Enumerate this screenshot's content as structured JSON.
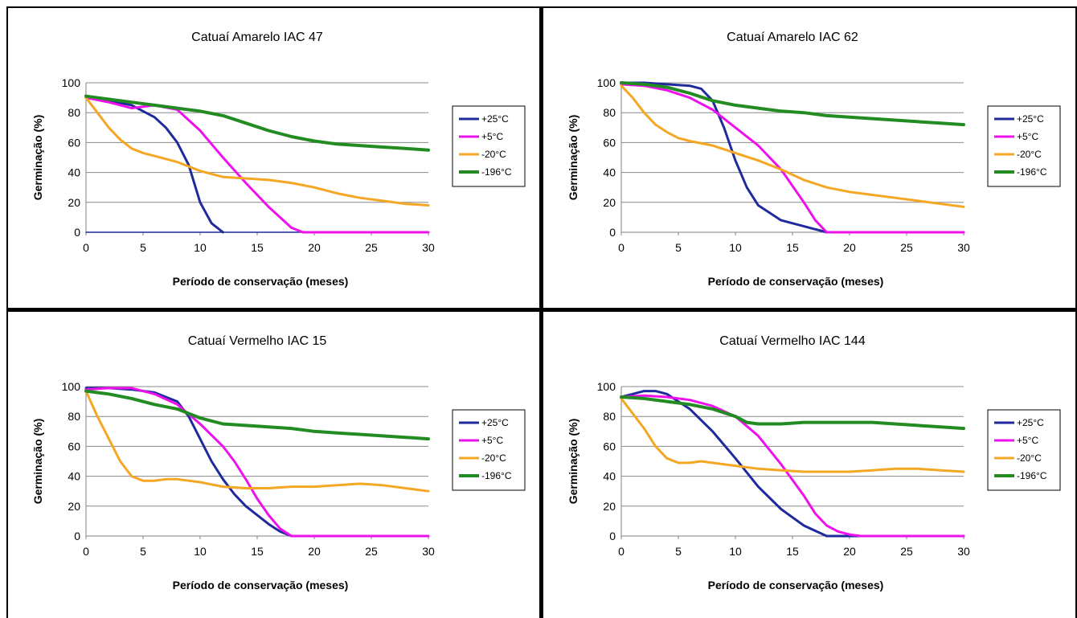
{
  "chart_data": [
    {
      "type": "line",
      "title": "Catuaí Amarelo IAC 47",
      "xlabel": "Período de conservação (meses)",
      "ylabel": "Germinação (%)",
      "xlim": [
        0,
        30
      ],
      "ylim": [
        0,
        100
      ],
      "xticks": [
        "0",
        "5",
        "10",
        "15",
        "20",
        "25",
        "30"
      ],
      "yticks": [
        "0",
        "20",
        "40",
        "60",
        "80",
        "100"
      ],
      "grid": "horizontal",
      "legend": "right",
      "series": [
        {
          "name": "+25°C",
          "color": "#1f2a9c",
          "width": 1.5,
          "x": [
            0,
            30
          ],
          "y": [
            0,
            0
          ]
        },
        {
          "name": "+25°C",
          "color": "#1f2a9c",
          "width": 3,
          "x": [
            0,
            2,
            4,
            6,
            7,
            8,
            9,
            10,
            11,
            12
          ],
          "y": [
            90,
            88,
            85,
            77,
            70,
            60,
            45,
            20,
            6,
            0
          ]
        },
        {
          "name": "+5°C",
          "color": "#ee11ee",
          "width": 3,
          "x": [
            0,
            2,
            4,
            6,
            8,
            10,
            12,
            14,
            16,
            18,
            19,
            30
          ],
          "y": [
            90,
            87,
            83,
            85,
            82,
            68,
            50,
            33,
            17,
            3,
            0,
            0
          ]
        },
        {
          "name": "-20°C",
          "color": "#f5a623",
          "width": 3,
          "x": [
            0,
            1,
            2,
            3,
            4,
            5,
            6,
            8,
            10,
            12,
            14,
            16,
            18,
            20,
            22,
            24,
            26,
            28,
            30
          ],
          "y": [
            90,
            80,
            70,
            62,
            56,
            53,
            51,
            47,
            41,
            37,
            36,
            35,
            33,
            30,
            26,
            23,
            21,
            19,
            18
          ]
        },
        {
          "name": "-196°C",
          "color": "#228b22",
          "width": 4,
          "x": [
            0,
            2,
            4,
            6,
            8,
            10,
            12,
            14,
            16,
            18,
            20,
            22,
            24,
            26,
            28,
            30
          ],
          "y": [
            91,
            89,
            87,
            85,
            83,
            81,
            78,
            73,
            68,
            64,
            61,
            59,
            58,
            57,
            56,
            55
          ]
        }
      ]
    },
    {
      "type": "line",
      "title": "Catuaí Amarelo IAC 62",
      "xlabel": "Período de conservação (meses)",
      "ylabel": "Germinação (%)",
      "xlim": [
        0,
        30
      ],
      "ylim": [
        0,
        100
      ],
      "xticks": [
        "0",
        "5",
        "10",
        "15",
        "20",
        "25",
        "30"
      ],
      "yticks": [
        "0",
        "20",
        "40",
        "60",
        "80",
        "100"
      ],
      "grid": "horizontal",
      "legend": "right",
      "series": [
        {
          "name": "+25°C",
          "color": "#1f2a9c",
          "width": 3,
          "x": [
            0,
            2,
            4,
            6,
            7,
            8,
            9,
            10,
            11,
            12,
            14,
            16,
            17,
            18,
            30
          ],
          "y": [
            100,
            100,
            99,
            98,
            96,
            88,
            70,
            48,
            30,
            18,
            8,
            4,
            2,
            0,
            0
          ]
        },
        {
          "name": "+5°C",
          "color": "#ee11ee",
          "width": 3,
          "x": [
            0,
            2,
            4,
            6,
            8,
            10,
            12,
            14,
            16,
            17,
            18,
            22,
            30
          ],
          "y": [
            99,
            98,
            95,
            90,
            82,
            70,
            58,
            42,
            20,
            8,
            0,
            0,
            0
          ]
        },
        {
          "name": "-20°C",
          "color": "#f5a623",
          "width": 3,
          "x": [
            0,
            1,
            2,
            3,
            4,
            5,
            6,
            8,
            10,
            12,
            14,
            16,
            18,
            20,
            22,
            24,
            26,
            28,
            30
          ],
          "y": [
            98,
            90,
            80,
            72,
            67,
            63,
            61,
            58,
            53,
            48,
            42,
            35,
            30,
            27,
            25,
            23,
            21,
            19,
            17
          ]
        },
        {
          "name": "-196°C",
          "color": "#228b22",
          "width": 4,
          "x": [
            0,
            2,
            4,
            6,
            8,
            10,
            12,
            14,
            16,
            18,
            20,
            22,
            24,
            26,
            28,
            30
          ],
          "y": [
            100,
            99,
            97,
            93,
            88,
            85,
            83,
            81,
            80,
            78,
            77,
            76,
            75,
            74,
            73,
            72
          ]
        }
      ]
    },
    {
      "type": "line",
      "title": "Catuaí Vermelho IAC 15",
      "xlabel": "Período de conservação (meses)",
      "ylabel": "Germinação (%)",
      "xlim": [
        0,
        30
      ],
      "ylim": [
        0,
        100
      ],
      "xticks": [
        "0",
        "5",
        "10",
        "15",
        "20",
        "25",
        "30"
      ],
      "yticks": [
        "0",
        "20",
        "40",
        "60",
        "80",
        "100"
      ],
      "grid": "horizontal",
      "legend": "right",
      "series": [
        {
          "name": "+25°C",
          "color": "#1f2a9c",
          "width": 3,
          "x": [
            0,
            2,
            4,
            6,
            8,
            9,
            10,
            11,
            12,
            13,
            14,
            16,
            17,
            18
          ],
          "y": [
            99,
            99,
            98,
            96,
            90,
            80,
            65,
            50,
            38,
            28,
            20,
            8,
            3,
            0
          ]
        },
        {
          "name": "+5°C",
          "color": "#ee11ee",
          "width": 3,
          "x": [
            0,
            2,
            4,
            6,
            8,
            10,
            12,
            13,
            14,
            15,
            16,
            17,
            18,
            30
          ],
          "y": [
            98,
            99,
            99,
            95,
            88,
            75,
            60,
            50,
            38,
            25,
            14,
            5,
            0,
            0
          ]
        },
        {
          "name": "-20°C",
          "color": "#f5a623",
          "width": 3,
          "x": [
            0,
            1,
            2,
            3,
            4,
            5,
            6,
            7,
            8,
            10,
            12,
            14,
            16,
            18,
            20,
            22,
            24,
            26,
            28,
            30
          ],
          "y": [
            97,
            80,
            65,
            50,
            40,
            37,
            37,
            38,
            38,
            36,
            33,
            32,
            32,
            33,
            33,
            34,
            35,
            34,
            32,
            30
          ]
        },
        {
          "name": "-196°C",
          "color": "#228b22",
          "width": 4,
          "x": [
            0,
            2,
            4,
            6,
            8,
            10,
            12,
            14,
            16,
            18,
            20,
            22,
            24,
            26,
            28,
            30
          ],
          "y": [
            97,
            95,
            92,
            88,
            85,
            79,
            75,
            74,
            73,
            72,
            70,
            69,
            68,
            67,
            66,
            65
          ]
        }
      ]
    },
    {
      "type": "line",
      "title": "Catuaí Vermelho IAC 144",
      "xlabel": "Período de conservação (meses)",
      "ylabel": "Germinação (%)",
      "xlim": [
        0,
        30
      ],
      "ylim": [
        0,
        100
      ],
      "xticks": [
        "0",
        "5",
        "10",
        "15",
        "20",
        "25",
        "30"
      ],
      "yticks": [
        "0",
        "20",
        "40",
        "60",
        "80",
        "100"
      ],
      "grid": "horizontal",
      "legend": "right",
      "series": [
        {
          "name": "+25°C",
          "color": "#1f2a9c",
          "width": 3,
          "x": [
            0,
            1,
            2,
            3,
            4,
            5,
            6,
            8,
            10,
            12,
            14,
            16,
            18,
            30
          ],
          "y": [
            93,
            95,
            97,
            97,
            95,
            90,
            85,
            70,
            52,
            33,
            18,
            7,
            0,
            0
          ]
        },
        {
          "name": "+5°C",
          "color": "#ee11ee",
          "width": 3,
          "x": [
            0,
            2,
            4,
            6,
            8,
            10,
            12,
            14,
            16,
            17,
            18,
            19,
            20,
            21,
            30
          ],
          "y": [
            93,
            94,
            93,
            91,
            87,
            80,
            67,
            48,
            27,
            15,
            7,
            3,
            1,
            0,
            0
          ]
        },
        {
          "name": "-20°C",
          "color": "#f5a623",
          "width": 3,
          "x": [
            0,
            1,
            2,
            3,
            4,
            5,
            6,
            7,
            8,
            10,
            12,
            14,
            16,
            18,
            20,
            22,
            24,
            26,
            28,
            30
          ],
          "y": [
            92,
            82,
            72,
            60,
            52,
            49,
            49,
            50,
            49,
            47,
            45,
            44,
            43,
            43,
            43,
            44,
            45,
            45,
            44,
            43
          ]
        },
        {
          "name": "-196°C",
          "color": "#228b22",
          "width": 4,
          "x": [
            0,
            2,
            4,
            6,
            8,
            10,
            11,
            12,
            14,
            16,
            18,
            20,
            22,
            24,
            26,
            28,
            30
          ],
          "y": [
            93,
            92,
            90,
            88,
            85,
            80,
            76,
            75,
            75,
            76,
            76,
            76,
            76,
            75,
            74,
            73,
            72
          ]
        }
      ]
    }
  ]
}
